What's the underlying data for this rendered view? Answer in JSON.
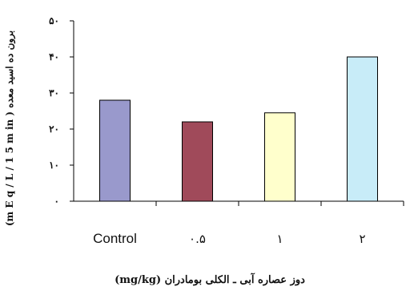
{
  "chart_data": {
    "type": "bar",
    "categories": [
      "Control",
      "۰.۵",
      "۱",
      "۲"
    ],
    "values": [
      28,
      22,
      24.5,
      40
    ],
    "bar_colors": [
      "#9999cc",
      "#a04a5a",
      "#ffffcc",
      "#c8ecf8"
    ],
    "yticks": [
      {
        "value": 0,
        "label": "۰"
      },
      {
        "value": 10,
        "label": "۱۰"
      },
      {
        "value": 20,
        "label": "۲۰"
      },
      {
        "value": 30,
        "label": "۳۰"
      },
      {
        "value": 40,
        "label": "۴۰"
      },
      {
        "value": 50,
        "label": "۵۰"
      }
    ],
    "ylim": [
      0,
      50
    ],
    "xlabel": "دوز عصاره آبی ـ الکلی بومادران (mg/kg)",
    "ylabel": "(m E q / L / 1 5 m in ) برون ده اسید معده",
    "grid": false,
    "legend": "none"
  }
}
